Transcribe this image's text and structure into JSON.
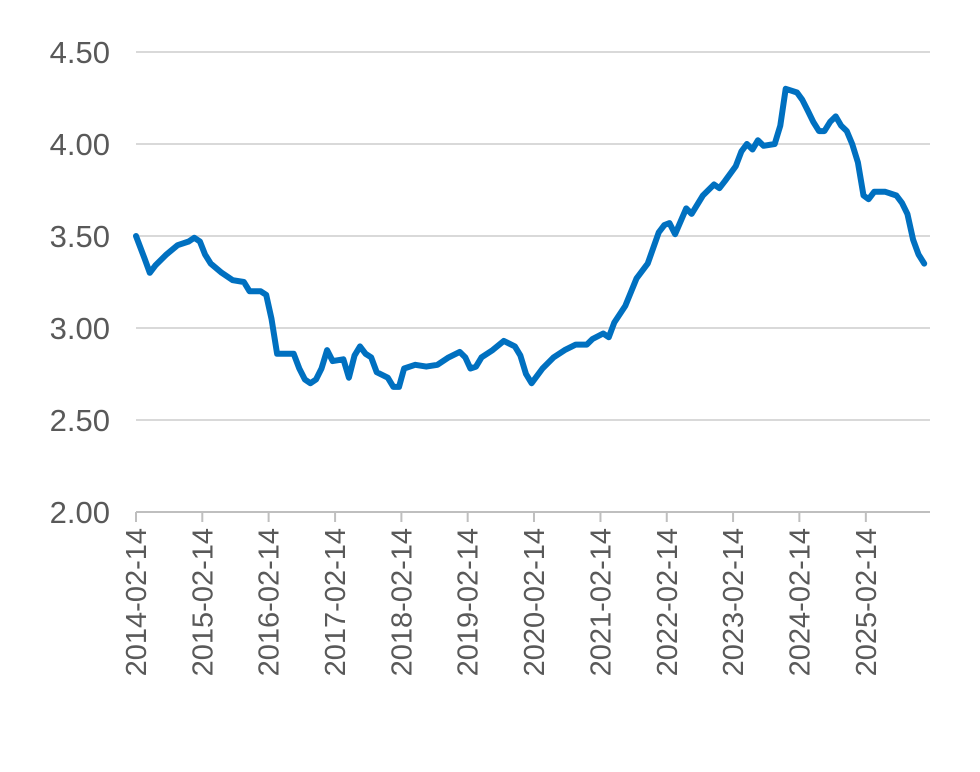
{
  "chart_data": {
    "type": "line",
    "title": "",
    "xlabel": "",
    "ylabel": "",
    "ylim": [
      2.0,
      4.5
    ],
    "y_ticks": [
      "2.00",
      "2.50",
      "3.00",
      "3.50",
      "4.00",
      "4.50"
    ],
    "x_ticks": [
      "2014-02-14",
      "2015-02-14",
      "2016-02-14",
      "2017-02-14",
      "2018-02-14",
      "2019-02-14",
      "2020-02-14",
      "2021-02-14",
      "2022-02-14",
      "2023-02-14",
      "2024-02-14",
      "2025-02-14"
    ],
    "x_range": [
      "2014-02-14",
      "2026-02-01"
    ],
    "grid": true,
    "legend": "none",
    "line_color": "#0070c0",
    "series": [
      {
        "points": [
          [
            "2014-02-14",
            3.5
          ],
          [
            "2014-04-01",
            3.38
          ],
          [
            "2014-05-01",
            3.3
          ],
          [
            "2014-06-01",
            3.34
          ],
          [
            "2014-08-01",
            3.4
          ],
          [
            "2014-10-01",
            3.45
          ],
          [
            "2014-12-01",
            3.47
          ],
          [
            "2015-01-01",
            3.49
          ],
          [
            "2015-02-01",
            3.47
          ],
          [
            "2015-03-01",
            3.4
          ],
          [
            "2015-04-01",
            3.35
          ],
          [
            "2015-06-01",
            3.3
          ],
          [
            "2015-08-01",
            3.26
          ],
          [
            "2015-10-01",
            3.25
          ],
          [
            "2015-11-01",
            3.2
          ],
          [
            "2016-01-01",
            3.2
          ],
          [
            "2016-02-01",
            3.18
          ],
          [
            "2016-03-01",
            3.05
          ],
          [
            "2016-04-01",
            2.86
          ],
          [
            "2016-07-01",
            2.86
          ],
          [
            "2016-08-01",
            2.78
          ],
          [
            "2016-09-01",
            2.72
          ],
          [
            "2016-10-01",
            2.7
          ],
          [
            "2016-11-01",
            2.72
          ],
          [
            "2016-12-01",
            2.78
          ],
          [
            "2017-01-01",
            2.88
          ],
          [
            "2017-02-01",
            2.82
          ],
          [
            "2017-04-01",
            2.83
          ],
          [
            "2017-05-01",
            2.73
          ],
          [
            "2017-06-01",
            2.85
          ],
          [
            "2017-07-01",
            2.9
          ],
          [
            "2017-08-01",
            2.86
          ],
          [
            "2017-09-01",
            2.84
          ],
          [
            "2017-10-01",
            2.76
          ],
          [
            "2017-12-01",
            2.73
          ],
          [
            "2018-01-01",
            2.68
          ],
          [
            "2018-02-01",
            2.68
          ],
          [
            "2018-03-01",
            2.78
          ],
          [
            "2018-05-01",
            2.8
          ],
          [
            "2018-07-01",
            2.79
          ],
          [
            "2018-09-01",
            2.8
          ],
          [
            "2018-11-01",
            2.84
          ],
          [
            "2019-01-01",
            2.87
          ],
          [
            "2019-02-01",
            2.84
          ],
          [
            "2019-03-01",
            2.78
          ],
          [
            "2019-04-01",
            2.79
          ],
          [
            "2019-05-01",
            2.84
          ],
          [
            "2019-07-01",
            2.88
          ],
          [
            "2019-09-01",
            2.93
          ],
          [
            "2019-11-01",
            2.9
          ],
          [
            "2019-12-01",
            2.85
          ],
          [
            "2020-01-01",
            2.75
          ],
          [
            "2020-02-01",
            2.7
          ],
          [
            "2020-04-01",
            2.78
          ],
          [
            "2020-06-01",
            2.84
          ],
          [
            "2020-08-01",
            2.88
          ],
          [
            "2020-10-01",
            2.91
          ],
          [
            "2020-12-01",
            2.91
          ],
          [
            "2021-01-01",
            2.94
          ],
          [
            "2021-03-01",
            2.97
          ],
          [
            "2021-04-01",
            2.95
          ],
          [
            "2021-05-01",
            3.03
          ],
          [
            "2021-07-01",
            3.12
          ],
          [
            "2021-09-01",
            3.27
          ],
          [
            "2021-11-01",
            3.35
          ],
          [
            "2022-01-01",
            3.52
          ],
          [
            "2022-02-01",
            3.56
          ],
          [
            "2022-03-01",
            3.57
          ],
          [
            "2022-04-01",
            3.51
          ],
          [
            "2022-06-01",
            3.65
          ],
          [
            "2022-07-01",
            3.62
          ],
          [
            "2022-09-01",
            3.72
          ],
          [
            "2022-11-01",
            3.78
          ],
          [
            "2022-12-01",
            3.76
          ],
          [
            "2023-01-01",
            3.8
          ],
          [
            "2023-03-01",
            3.88
          ],
          [
            "2023-04-01",
            3.96
          ],
          [
            "2023-05-01",
            4.0
          ],
          [
            "2023-06-01",
            3.97
          ],
          [
            "2023-07-01",
            4.02
          ],
          [
            "2023-08-01",
            3.99
          ],
          [
            "2023-10-01",
            4.0
          ],
          [
            "2023-11-01",
            4.1
          ],
          [
            "2023-12-01",
            4.3
          ],
          [
            "2024-02-01",
            4.28
          ],
          [
            "2024-03-01",
            4.24
          ],
          [
            "2024-04-01",
            4.18
          ],
          [
            "2024-05-01",
            4.12
          ],
          [
            "2024-06-01",
            4.07
          ],
          [
            "2024-07-01",
            4.07
          ],
          [
            "2024-08-01",
            4.12
          ],
          [
            "2024-09-01",
            4.15
          ],
          [
            "2024-10-01",
            4.1
          ],
          [
            "2024-11-01",
            4.07
          ],
          [
            "2024-12-01",
            4.0
          ],
          [
            "2025-01-01",
            3.9
          ],
          [
            "2025-02-01",
            3.72
          ],
          [
            "2025-03-01",
            3.7
          ],
          [
            "2025-04-01",
            3.74
          ],
          [
            "2025-06-01",
            3.74
          ],
          [
            "2025-08-01",
            3.72
          ],
          [
            "2025-09-01",
            3.68
          ],
          [
            "2025-10-01",
            3.62
          ],
          [
            "2025-11-01",
            3.48
          ],
          [
            "2025-12-01",
            3.4
          ],
          [
            "2026-01-01",
            3.35
          ]
        ]
      }
    ]
  }
}
